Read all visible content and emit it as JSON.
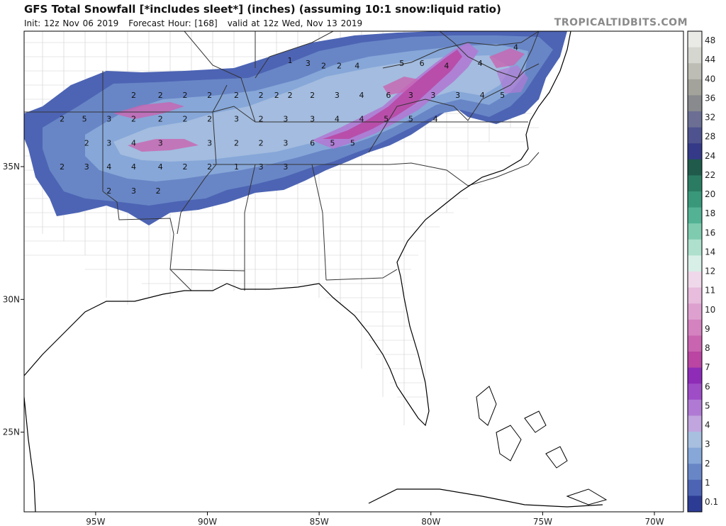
{
  "header": {
    "title": "GFS Total Snowfall [*includes sleet*] (inches) (assuming 10:1 snow:liquid ratio)",
    "init": "Init: 12z Nov 06 2019",
    "forecast_hour": "Forecast Hour: [168]",
    "valid": "valid at 12z Wed, Nov 13 2019",
    "brand": "TROPICALTIDBITS.COM"
  },
  "map": {
    "lon_labels": [
      "95W",
      "90W",
      "85W",
      "80W",
      "75W",
      "70W"
    ],
    "lat_labels": [
      "35N",
      "30N",
      "25N"
    ],
    "lon_values": [
      -95,
      -90,
      -85,
      -80,
      -75,
      -70
    ],
    "lat_values": [
      35,
      30,
      25
    ],
    "lon_range": [
      -98.2,
      -68.7
    ],
    "lat_range": [
      22.0,
      40.1
    ]
  },
  "colorbar": {
    "labels": [
      "48",
      "44",
      "40",
      "36",
      "32",
      "28",
      "24",
      "22",
      "20",
      "18",
      "16",
      "14",
      "12",
      "11",
      "10",
      "9",
      "8",
      "7",
      "6",
      "5",
      "4",
      "3",
      "2",
      "1",
      "0.1"
    ],
    "colors": [
      "#e9e9e6",
      "#d6d6d1",
      "#bdbdb5",
      "#a3a39b",
      "#888a8e",
      "#6c6f93",
      "#4e538f",
      "#343a87",
      "#1f5a4b",
      "#2b7b62",
      "#39977a",
      "#53b294",
      "#7fcbb0",
      "#aee0cd",
      "#d8efe7",
      "#efd8ea",
      "#e7bcdc",
      "#dea1cf",
      "#d482c0",
      "#c964b0",
      "#ba45a2",
      "#8e2cb8",
      "#9f4cc7",
      "#b07ad4",
      "#c0a5de",
      "#a8bfe0",
      "#86a7d8",
      "#6886c6",
      "#4d64b4",
      "#2c3c95"
    ]
  },
  "snow_labels": [
    {
      "lon": -86.3,
      "lat": 39.0,
      "v": "1"
    },
    {
      "lon": -85.5,
      "lat": 38.9,
      "v": "3"
    },
    {
      "lon": -84.8,
      "lat": 38.8,
      "v": "2"
    },
    {
      "lon": -84.1,
      "lat": 38.8,
      "v": "2"
    },
    {
      "lon": -83.3,
      "lat": 38.8,
      "v": "4"
    },
    {
      "lon": -81.3,
      "lat": 38.9,
      "v": "5"
    },
    {
      "lon": -80.4,
      "lat": 38.9,
      "v": "6"
    },
    {
      "lon": -79.3,
      "lat": 38.8,
      "v": "4"
    },
    {
      "lon": -77.8,
      "lat": 38.9,
      "v": "4"
    },
    {
      "lon": -76.2,
      "lat": 39.5,
      "v": "4"
    },
    {
      "lon": -93.3,
      "lat": 37.7,
      "v": "2"
    },
    {
      "lon": -92.1,
      "lat": 37.7,
      "v": "2"
    },
    {
      "lon": -91.0,
      "lat": 37.7,
      "v": "2"
    },
    {
      "lon": -89.9,
      "lat": 37.7,
      "v": "2"
    },
    {
      "lon": -88.7,
      "lat": 37.7,
      "v": "2"
    },
    {
      "lon": -87.6,
      "lat": 37.7,
      "v": "2"
    },
    {
      "lon": -86.9,
      "lat": 37.7,
      "v": "2"
    },
    {
      "lon": -86.3,
      "lat": 37.7,
      "v": "2"
    },
    {
      "lon": -85.3,
      "lat": 37.7,
      "v": "2"
    },
    {
      "lon": -84.2,
      "lat": 37.7,
      "v": "3"
    },
    {
      "lon": -83.1,
      "lat": 37.7,
      "v": "4"
    },
    {
      "lon": -81.9,
      "lat": 37.7,
      "v": "6"
    },
    {
      "lon": -80.9,
      "lat": 37.7,
      "v": "3"
    },
    {
      "lon": -79.9,
      "lat": 37.7,
      "v": "3"
    },
    {
      "lon": -78.8,
      "lat": 37.7,
      "v": "3"
    },
    {
      "lon": -77.7,
      "lat": 37.7,
      "v": "4"
    },
    {
      "lon": -76.8,
      "lat": 37.7,
      "v": "5"
    },
    {
      "lon": -96.5,
      "lat": 36.8,
      "v": "2"
    },
    {
      "lon": -95.5,
      "lat": 36.8,
      "v": "5"
    },
    {
      "lon": -94.4,
      "lat": 36.8,
      "v": "3"
    },
    {
      "lon": -93.3,
      "lat": 36.8,
      "v": "2"
    },
    {
      "lon": -92.1,
      "lat": 36.8,
      "v": "2"
    },
    {
      "lon": -91.0,
      "lat": 36.8,
      "v": "2"
    },
    {
      "lon": -89.9,
      "lat": 36.8,
      "v": "2"
    },
    {
      "lon": -88.7,
      "lat": 36.8,
      "v": "3"
    },
    {
      "lon": -87.6,
      "lat": 36.8,
      "v": "2"
    },
    {
      "lon": -86.5,
      "lat": 36.8,
      "v": "3"
    },
    {
      "lon": -85.3,
      "lat": 36.8,
      "v": "3"
    },
    {
      "lon": -84.2,
      "lat": 36.8,
      "v": "4"
    },
    {
      "lon": -83.1,
      "lat": 36.8,
      "v": "4"
    },
    {
      "lon": -82.0,
      "lat": 36.8,
      "v": "5"
    },
    {
      "lon": -80.9,
      "lat": 36.8,
      "v": "5"
    },
    {
      "lon": -79.8,
      "lat": 36.8,
      "v": "4"
    },
    {
      "lon": -95.4,
      "lat": 35.9,
      "v": "2"
    },
    {
      "lon": -94.4,
      "lat": 35.9,
      "v": "3"
    },
    {
      "lon": -93.3,
      "lat": 35.9,
      "v": "4"
    },
    {
      "lon": -92.1,
      "lat": 35.9,
      "v": "3"
    },
    {
      "lon": -89.9,
      "lat": 35.9,
      "v": "3"
    },
    {
      "lon": -88.7,
      "lat": 35.9,
      "v": "2"
    },
    {
      "lon": -87.6,
      "lat": 35.9,
      "v": "2"
    },
    {
      "lon": -86.5,
      "lat": 35.9,
      "v": "3"
    },
    {
      "lon": -85.3,
      "lat": 35.9,
      "v": "6"
    },
    {
      "lon": -84.4,
      "lat": 35.9,
      "v": "5"
    },
    {
      "lon": -83.5,
      "lat": 35.9,
      "v": "5"
    },
    {
      "lon": -96.5,
      "lat": 35.0,
      "v": "2"
    },
    {
      "lon": -95.4,
      "lat": 35.0,
      "v": "3"
    },
    {
      "lon": -94.4,
      "lat": 35.0,
      "v": "4"
    },
    {
      "lon": -93.3,
      "lat": 35.0,
      "v": "4"
    },
    {
      "lon": -92.1,
      "lat": 35.0,
      "v": "4"
    },
    {
      "lon": -91.0,
      "lat": 35.0,
      "v": "2"
    },
    {
      "lon": -89.9,
      "lat": 35.0,
      "v": "2"
    },
    {
      "lon": -88.7,
      "lat": 35.0,
      "v": "1"
    },
    {
      "lon": -87.6,
      "lat": 35.0,
      "v": "3"
    },
    {
      "lon": -86.5,
      "lat": 35.0,
      "v": "3"
    },
    {
      "lon": -94.4,
      "lat": 34.1,
      "v": "2"
    },
    {
      "lon": -93.3,
      "lat": 34.1,
      "v": "3"
    },
    {
      "lon": -92.2,
      "lat": 34.1,
      "v": "2"
    }
  ]
}
